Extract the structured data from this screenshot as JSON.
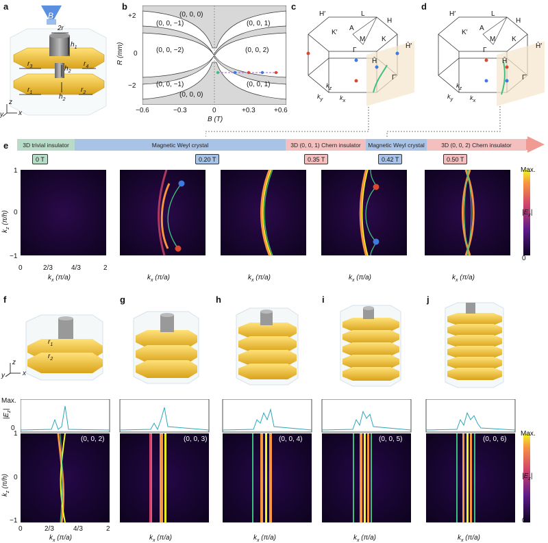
{
  "panels": {
    "a": "a",
    "b": "b",
    "c": "c",
    "d": "d",
    "e": "e",
    "f": "f",
    "g": "g",
    "h": "h",
    "i": "i",
    "j": "j"
  },
  "panel_a": {
    "field": "B",
    "r2": "2r",
    "h1": "h",
    "h1_sub": "1",
    "h2": "h",
    "h2_sub": "2",
    "r3": "r",
    "r3_sub": "3",
    "r4": "r",
    "r4_sub": "4",
    "r1": "r",
    "r1_sub": "1",
    "r2b": "r",
    "r2b_sub": "2",
    "ax_z": "z",
    "ax_y": "y",
    "ax_x": "x"
  },
  "panel_b": {
    "ylabel": "R (mm)",
    "xlabel": "B (T)",
    "yticks": [
      "+2",
      "0",
      "−2"
    ],
    "xticks": [
      "−0.6",
      "−0.3",
      "0",
      "+0.3",
      "+0.6"
    ],
    "regions": [
      "(0, 0, 0)",
      "(0, 0, −1)",
      "(0, 0, 1)",
      "(0, 0, −2)",
      "(0, 0, 2)",
      "(0, 0, −1)",
      "(0, 0, 1)",
      "(0, 0, 0)"
    ]
  },
  "panel_c": {
    "labels": [
      "H′",
      "L",
      "H",
      "A",
      "K′",
      "M",
      "K",
      "Γ",
      "H̄′",
      "H̄",
      "Γ̄",
      "k",
      "z",
      "k",
      "y",
      "k",
      "x"
    ]
  },
  "panel_d": {
    "labels": [
      "H′",
      "L",
      "H",
      "A",
      "K′",
      "M",
      "K",
      "Γ",
      "H̄′",
      "H̄",
      "Γ̄",
      "k",
      "z",
      "k",
      "y",
      "k",
      "x"
    ]
  },
  "phase_bar": {
    "segments": [
      {
        "label": "3D trivial insulator",
        "color": "#b9dcc8"
      },
      {
        "label": "Magnetic Weyl crystal",
        "color": "#a9c3e6"
      },
      {
        "label": "3D (0, 0, 1) Chern insulator",
        "color": "#f3c0bf"
      },
      {
        "label": "Magnetic Weyl crystal",
        "color": "#a9c3e6"
      },
      {
        "label": "3D (0, 0, 2) Chern insulator",
        "color": "#f3c0bf"
      }
    ],
    "tags": [
      {
        "label": "0 T",
        "color": "#b9dcc8"
      },
      {
        "label": "0.20 T",
        "color": "#a9c3e6"
      },
      {
        "label": "0.35 T",
        "color": "#f3c0bf"
      },
      {
        "label": "0.42 T",
        "color": "#a9c3e6"
      },
      {
        "label": "0.50 T",
        "color": "#f3c0bf"
      }
    ]
  },
  "panel_e": {
    "ylabel": "k",
    "ylabel_sub": "z",
    "ylabel_unit": " (π/h)",
    "xlabel": "k",
    "xlabel_sub": "x",
    "xlabel_unit": " (π/a)",
    "yticks": [
      "1",
      "0",
      "−1"
    ],
    "xticks": [
      "0",
      "2/3",
      "4/3",
      "2"
    ],
    "colorbar_max": "Max.",
    "colorbar_min": "0",
    "colorbar_label": "|E",
    "colorbar_sub": "z",
    "colorbar_end": "|"
  },
  "bottom": {
    "ylabel_top": "|E",
    "ylabel_top_sub": "z",
    "ylabel_top_end": "|",
    "max": "Max.",
    "zero": "0",
    "ylabel": "k",
    "ylabel_sub": "z",
    "ylabel_unit": " (π/h)",
    "xlabel": "k",
    "xlabel_sub": "x",
    "xlabel_unit": " (π/a)",
    "yticks": [
      "1",
      "0",
      "−1"
    ],
    "xticks": [
      "0",
      "2/3",
      "4/3",
      "2"
    ],
    "chern": [
      "(0, 0, 2)",
      "(0, 0, 3)",
      "(0, 0, 4)",
      "(0, 0, 5)",
      "(0, 0, 6)"
    ],
    "colorbar_max": "Max.",
    "colorbar_min": "0",
    "colorbar_label": "|E",
    "colorbar_sub": "z",
    "colorbar_end": "|",
    "layer_r1": "r",
    "layer_r1_sub": "1",
    "layer_r2": "r",
    "layer_r2_sub": "2",
    "ax_z": "z",
    "ax_y": "y",
    "ax_x": "x"
  },
  "colors": {
    "plasma_dark": "#0d0320",
    "plasma_mid": "#5c1a8a",
    "arc_green": "#3fbf7f",
    "node_red": "#d9492f",
    "node_blue": "#3d7be0",
    "bar_arrow": "#ef9a92",
    "profile": "#2ea6b8",
    "gold": "#f2c542"
  },
  "chart_data": [
    {
      "type": "heatmap",
      "title": "0 T",
      "xlabel": "k_x (π/a)",
      "ylabel": "k_z (π/h)",
      "xlim": [
        0,
        2
      ],
      "ylim": [
        -1,
        1
      ]
    },
    {
      "type": "heatmap",
      "title": "0.20 T",
      "xlabel": "k_x (π/a)",
      "ylabel": "k_z (π/h)",
      "xlim": [
        0,
        2
      ],
      "ylim": [
        -1,
        1
      ]
    },
    {
      "type": "heatmap",
      "title": "0.35 T",
      "xlabel": "k_x (π/a)",
      "ylabel": "k_z (π/h)",
      "xlim": [
        0,
        2
      ],
      "ylim": [
        -1,
        1
      ]
    },
    {
      "type": "heatmap",
      "title": "0.42 T",
      "xlabel": "k_x (π/a)",
      "ylabel": "k_z (π/h)",
      "xlim": [
        0,
        2
      ],
      "ylim": [
        -1,
        1
      ]
    },
    {
      "type": "heatmap",
      "title": "0.50 T",
      "xlabel": "k_x (π/a)",
      "ylabel": "k_z (π/h)",
      "xlim": [
        0,
        2
      ],
      "ylim": [
        -1,
        1
      ]
    }
  ]
}
